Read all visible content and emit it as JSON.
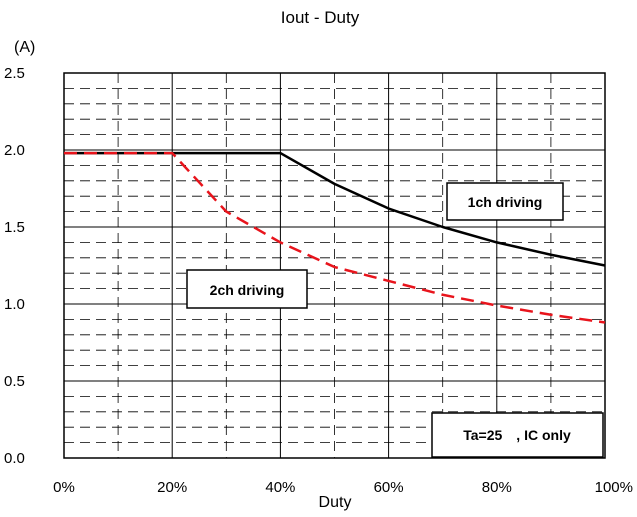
{
  "chart_data": {
    "type": "line",
    "title": "Iout - Duty",
    "xlabel": "Duty",
    "ylabel": "(A)",
    "xlim": [
      0,
      100
    ],
    "ylim": [
      0,
      2.5
    ],
    "x_ticks": [
      "0%",
      "20%",
      "40%",
      "60%",
      "80%",
      "100%"
    ],
    "y_ticks": [
      "0.0",
      "0.5",
      "1.0",
      "1.5",
      "2.0",
      "2.5"
    ],
    "grid": true,
    "series": [
      {
        "name": "1ch driving",
        "color": "#000000",
        "style": "solid",
        "x": [
          0,
          10,
          20,
          30,
          40,
          50,
          60,
          70,
          80,
          90,
          100
        ],
        "y": [
          1.98,
          1.98,
          1.98,
          1.98,
          1.98,
          1.78,
          1.62,
          1.5,
          1.4,
          1.32,
          1.25
        ]
      },
      {
        "name": "2ch driving",
        "color": "#e8141c",
        "style": "dashed",
        "x": [
          0,
          10,
          20,
          30,
          40,
          50,
          60,
          70,
          80,
          90,
          100
        ],
        "y": [
          1.98,
          1.98,
          1.98,
          1.6,
          1.4,
          1.24,
          1.15,
          1.06,
          0.99,
          0.93,
          0.88
        ]
      }
    ],
    "annotations": [
      {
        "text": "1ch driving"
      },
      {
        "text": "2ch driving"
      },
      {
        "text": "Ta=25　, IC only"
      }
    ]
  }
}
